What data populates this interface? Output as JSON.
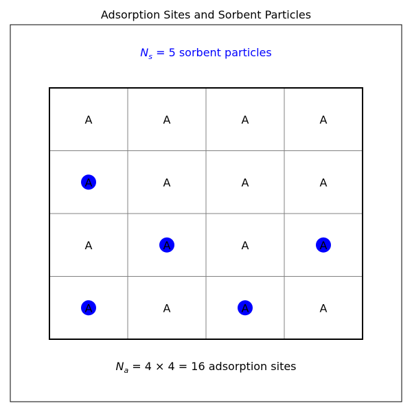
{
  "title": "Adsorption Sites and Sorbent Particles",
  "top_label": {
    "symbol": "N",
    "subscript": "s",
    "expression": " = 5",
    "text": " sorbent particles",
    "color": "#0000ff"
  },
  "bottom_label": {
    "symbol": "N",
    "subscript": "a",
    "expression": " = 4 × 4 = 16",
    "text": " adsorption sites",
    "color": "#000000"
  },
  "grid": {
    "rows": 4,
    "cols": 4,
    "site_label": "A",
    "occupied": [
      [
        1,
        0
      ],
      [
        2,
        1
      ],
      [
        2,
        3
      ],
      [
        3,
        0
      ],
      [
        3,
        2
      ]
    ]
  },
  "colors": {
    "particle": "#0000ff",
    "grid_line": "#808080",
    "border": "#000000",
    "text": "#000000"
  }
}
